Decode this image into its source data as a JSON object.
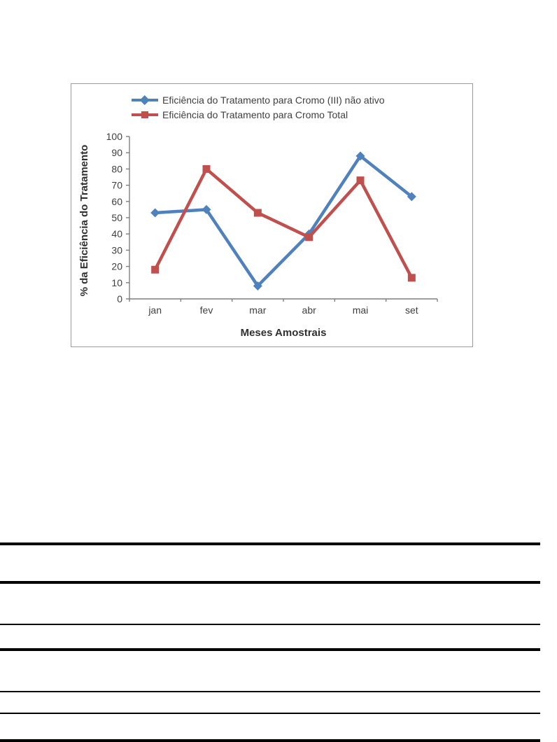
{
  "chart_data": {
    "type": "line",
    "categories": [
      "jan",
      "fev",
      "mar",
      "abr",
      "mai",
      "set"
    ],
    "series": [
      {
        "name": "Eficiência do Tratamento para Cromo (III) não ativo",
        "color": "#4F81BD",
        "marker": "diamond",
        "values": [
          53,
          55,
          8,
          40,
          88,
          63
        ]
      },
      {
        "name": "Eficiência do Tratamento para Cromo Total",
        "color": "#C0504D",
        "marker": "square",
        "values": [
          18,
          80,
          53,
          38,
          73,
          13
        ]
      }
    ],
    "title": "",
    "xlabel": "Meses Amostrais",
    "ylabel": "% da Eficiência do Tratamento",
    "ylim": [
      0,
      100
    ],
    "yticks": [
      0,
      10,
      20,
      30,
      40,
      50,
      60,
      70,
      80,
      90,
      100
    ],
    "grid": false,
    "legend_position": "top-left",
    "axis_color": "#7f7f7f",
    "text_color": "#3f3f3f",
    "border_color": "#9b9b9b"
  }
}
